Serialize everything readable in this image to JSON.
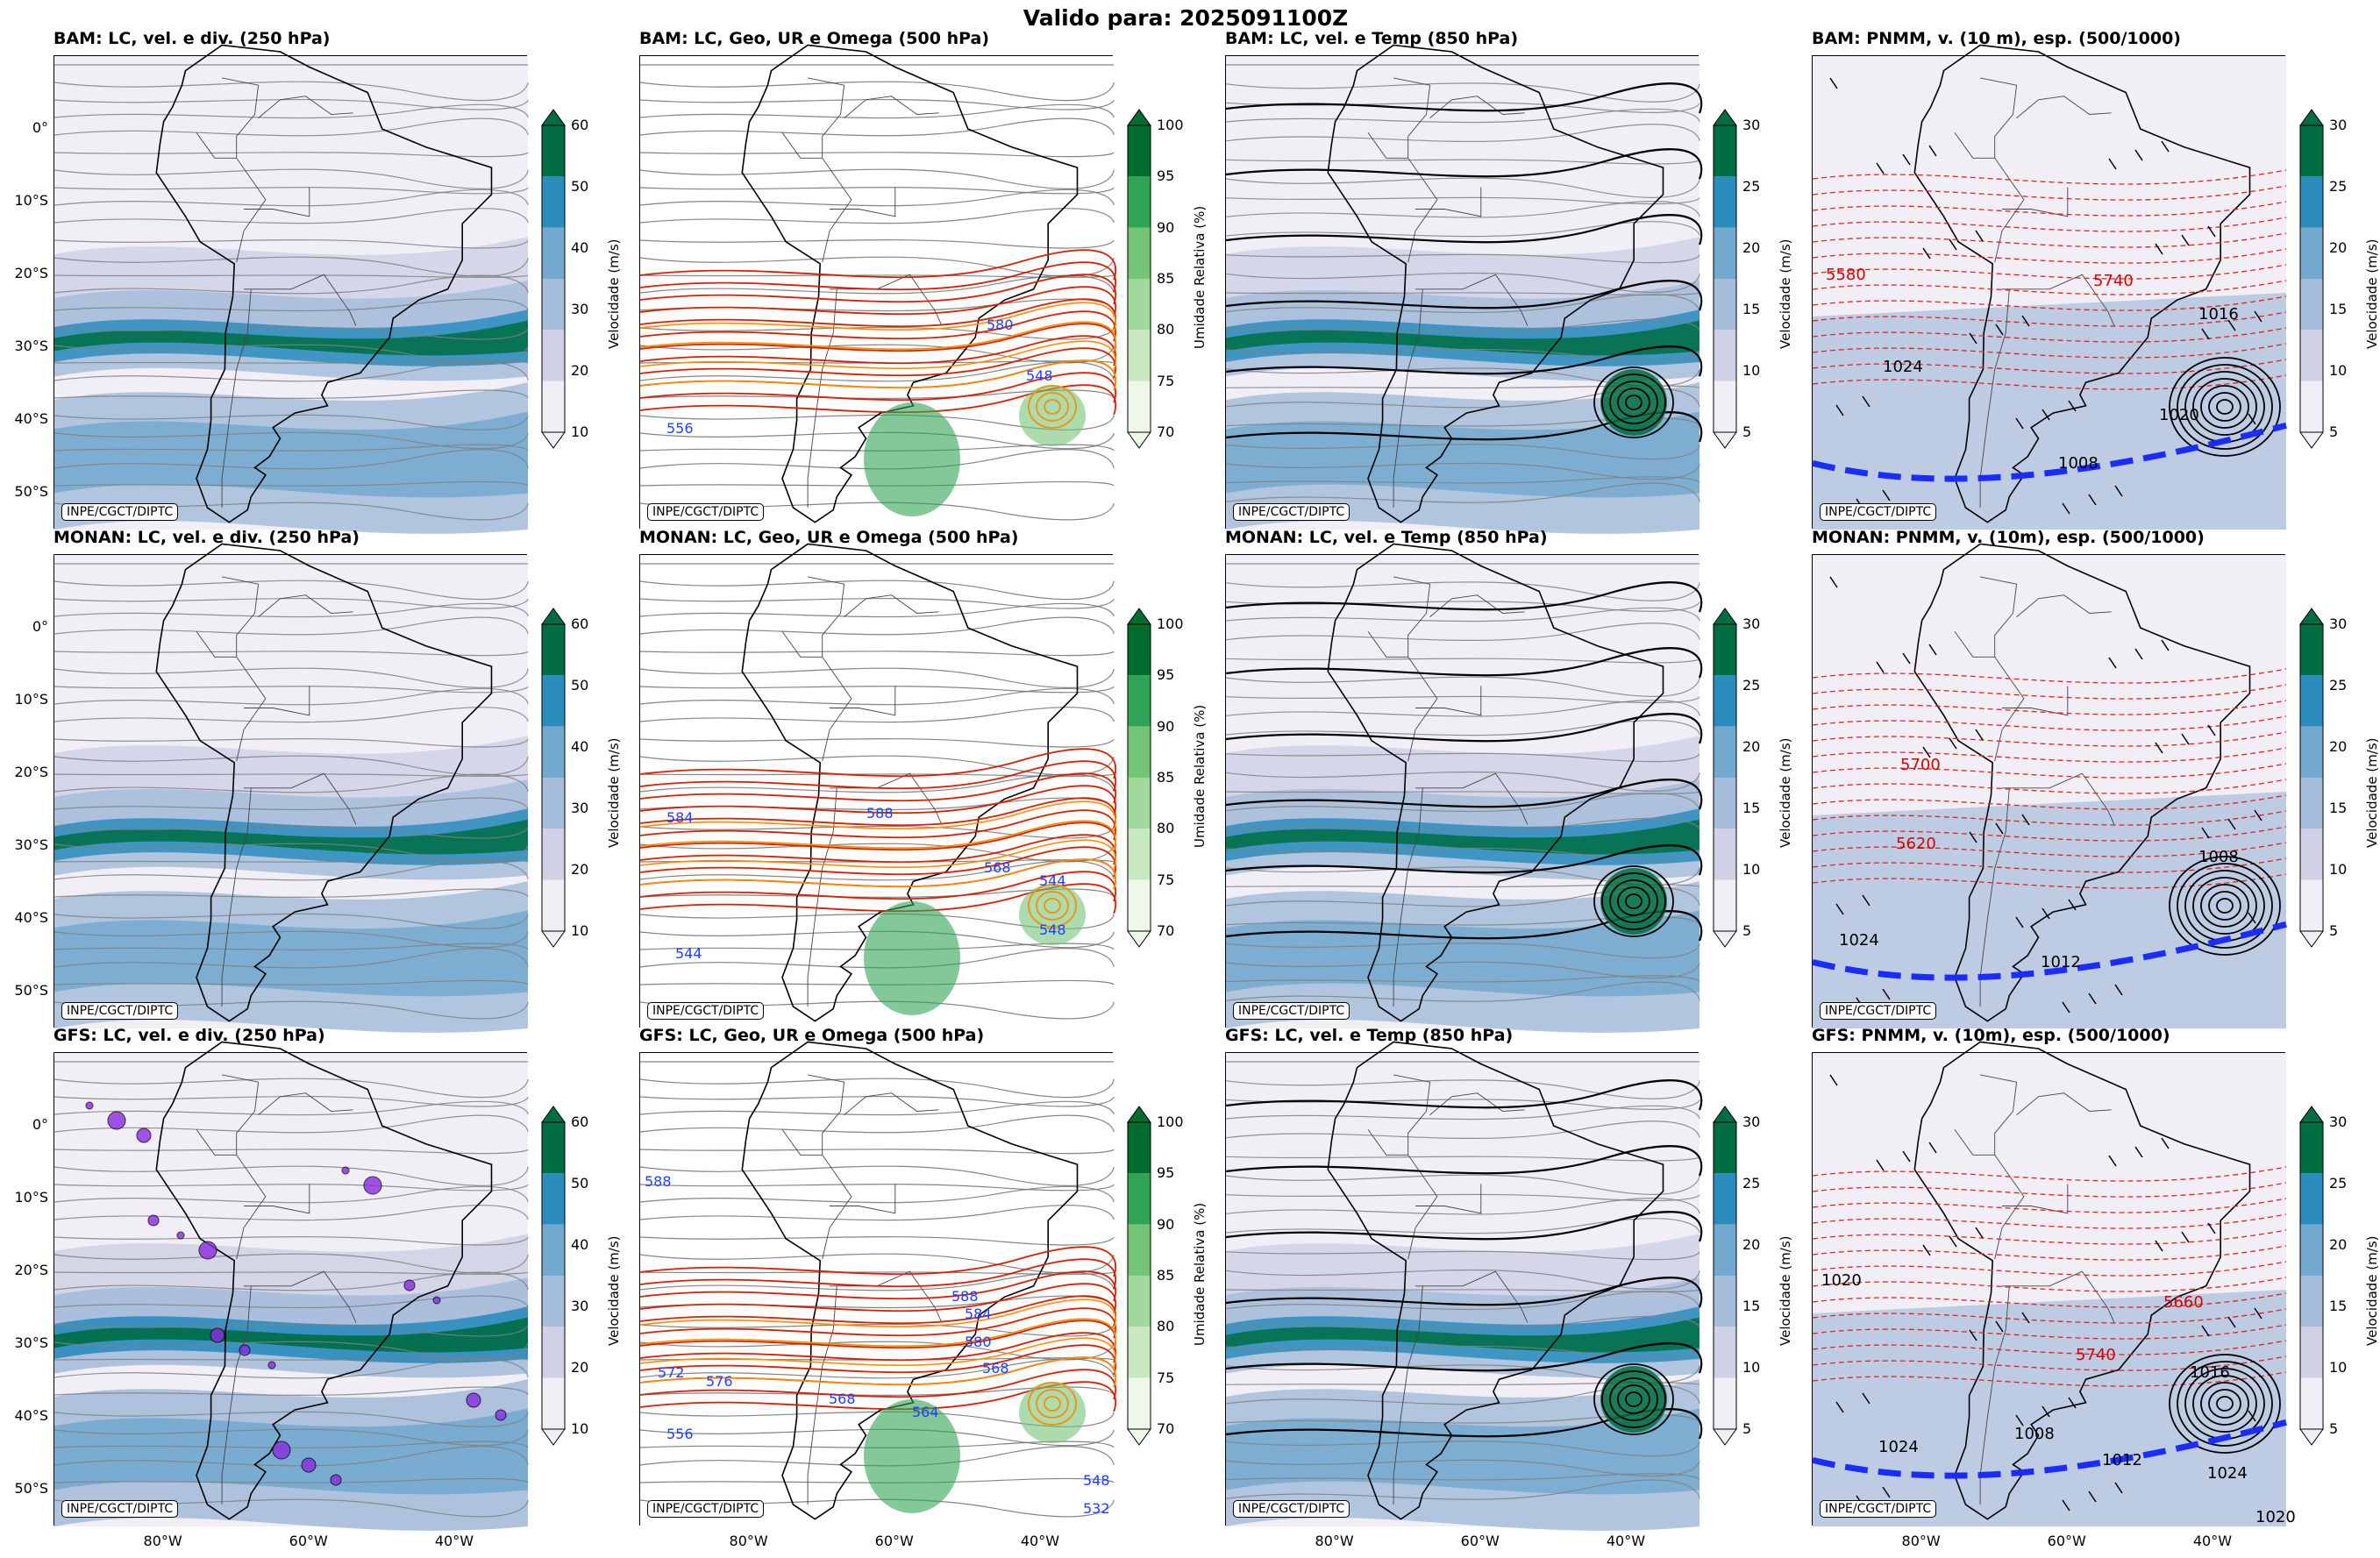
{
  "title": "Valido para: 2025091100Z",
  "credit": "INPE/CGCT/DIPTC",
  "panel_titles": [
    [
      "BAM: LC, vel. e div. (250 hPa)",
      "BAM: LC, Geo, UR e Omega (500 hPa)",
      "BAM: LC, vel. e Temp (850 hPa)",
      "BAM: PNMM, v. (10 m), esp. (500/1000)"
    ],
    [
      "MONAN: LC, vel. e div. (250 hPa)",
      "MONAN: LC, Geo, UR e Omega (500 hPa)",
      "MONAN: LC, vel. e Temp (850 hPa)",
      "MONAN: PNMM, v. (10m), esp. (500/1000)"
    ],
    [
      "GFS: LC, vel. e div. (250 hPa)",
      "GFS: LC, Geo, UR e Omega (500 hPa)",
      "GFS: LC, vel. e Temp (850 hPa)",
      "GFS: PNMM, v. (10m), esp. (500/1000)"
    ]
  ],
  "colorbars": [
    {
      "label": "Velocidade (m/s)",
      "ticks": [
        "60",
        "50",
        "40",
        "30",
        "20",
        "10"
      ],
      "colors": [
        "#006d42",
        "#2b8cbe",
        "#74a9cf",
        "#a6bddb",
        "#d0d1e6",
        "#f1eef6"
      ]
    },
    {
      "label": "Umidade Relativa (%)",
      "ticks": [
        "100",
        "95",
        "90",
        "85",
        "80",
        "75",
        "70"
      ],
      "colors": [
        "#006d2c",
        "#31a354",
        "#74c476",
        "#a1d99b",
        "#c7e9c0",
        "#edf8e9"
      ]
    },
    {
      "label": "Velocidade (m/s)",
      "ticks": [
        "30",
        "25",
        "20",
        "15",
        "10",
        "5"
      ],
      "colors": [
        "#006d42",
        "#2b8cbe",
        "#74a9cf",
        "#a6bddb",
        "#d0d1e6",
        "#f1eef6"
      ]
    },
    {
      "label": "Velocidade (m/s)",
      "ticks": [
        "30",
        "25",
        "20",
        "15",
        "10",
        "5"
      ],
      "colors": [
        "#006d42",
        "#2b8cbe",
        "#74a9cf",
        "#a6bddb",
        "#d0d1e6",
        "#f1eef6"
      ]
    }
  ],
  "lat_labels": [
    "0°",
    "10°S",
    "20°S",
    "30°S",
    "40°S",
    "50°S"
  ],
  "lon_labels": [
    "80°W",
    "60°W",
    "40°W"
  ],
  "contour_labels": {
    "bam_500": [
      "580",
      "548",
      "556"
    ],
    "monan_500": [
      "584",
      "588",
      "568",
      "544",
      "548",
      "544"
    ],
    "gfs_500": [
      "588",
      "588",
      "584",
      "580",
      "572",
      "576",
      "568",
      "568",
      "556",
      "564",
      "548",
      "532"
    ],
    "bam_pnmm": [
      "1016",
      "1024",
      "1020",
      "1008",
      "5580",
      "5740"
    ],
    "monan_pnmm": [
      "1008",
      "1012",
      "1024",
      "5700",
      "5620"
    ],
    "gfs_pnmm": [
      "1020",
      "1024",
      "1008",
      "1012",
      "1016",
      "1024",
      "1020",
      "5660",
      "5740"
    ]
  }
}
